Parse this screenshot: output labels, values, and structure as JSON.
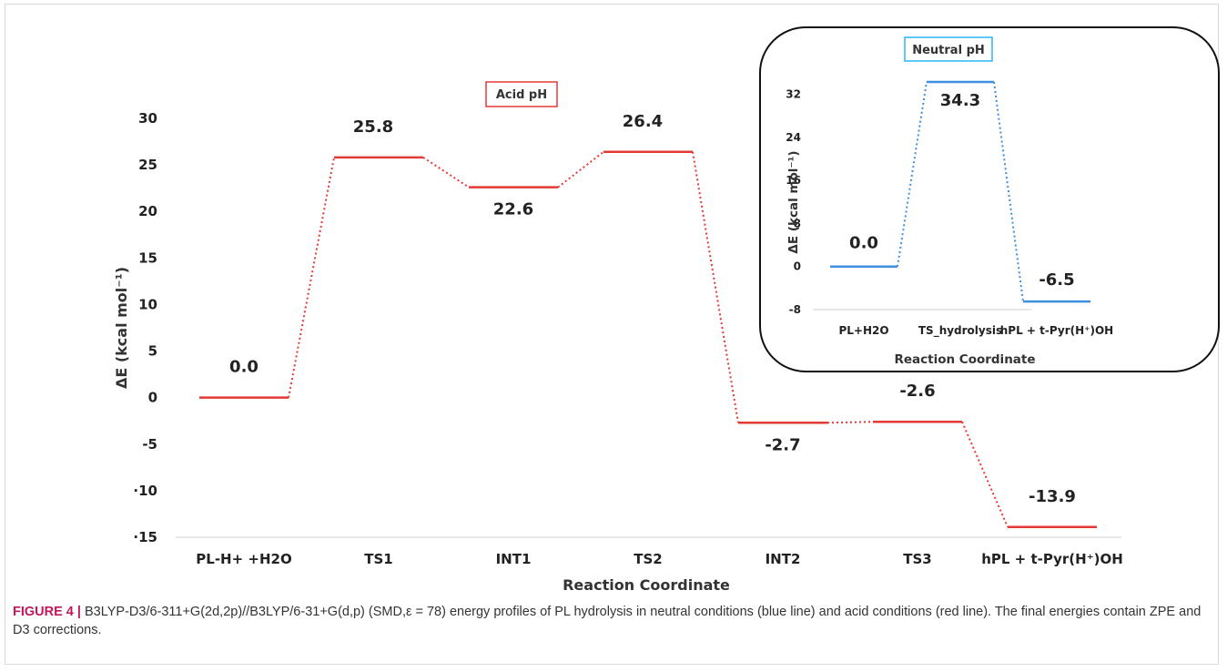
{
  "chart_data": [
    {
      "type": "line",
      "title": "Acid pH",
      "xlabel": "Reaction Coordinate",
      "ylabel": "ΔE (kcal mol⁻¹)",
      "ylim": [
        -15,
        30
      ],
      "yticks": [
        30,
        25,
        20,
        15,
        10,
        5,
        0,
        -5,
        -10,
        -15
      ],
      "ytick_labels": [
        "30",
        "25",
        "20",
        "15",
        "10",
        "5",
        "0",
        "-5",
        "·10",
        "·15"
      ],
      "categories": [
        "PL-H+ +H2O",
        "TS1",
        "INT1",
        "TS2",
        "INT2",
        "TS3",
        "hPL + t-Pyr(H⁺)OH"
      ],
      "series": [
        {
          "values": [
            0.0,
            25.8,
            22.6,
            26.4,
            -2.7,
            -2.6,
            -13.9
          ],
          "color": "#e53935"
        }
      ],
      "data_labels": [
        "0.0",
        "25.8",
        "22.6",
        "26.4",
        "-2.7",
        "-2.6",
        "-13.9"
      ],
      "grid": false
    },
    {
      "type": "line",
      "title": "Neutral pH",
      "xlabel": "Reaction Coordinate",
      "ylabel": "ΔE (kcal mol⁻¹)",
      "ylim": [
        -8,
        36
      ],
      "yticks": [
        32,
        24,
        16,
        8,
        0,
        -8
      ],
      "categories": [
        "PL+H2O",
        "TS_hydrolysis",
        "hPL + t-Pyr(H⁺)OH"
      ],
      "series": [
        {
          "values": [
            0.0,
            34.3,
            -6.5
          ],
          "color": "#3d8fe0"
        }
      ],
      "data_labels": [
        "0.0",
        "34.3",
        "-6.5"
      ],
      "grid": false
    }
  ],
  "caption": {
    "label": "FIGURE 4 |",
    "text": " B3LYP-D3/6-311+G(2d,2p)//B3LYP/6-31+G(d,p) (SMD,ε = 78) energy profiles of PL hydrolysis in neutral conditions (blue line) and acid conditions (red line). The final energies contain ZPE and D3 corrections."
  },
  "colors": {
    "acid_box_border": "#e53935",
    "neutral_box_border": "#29b6f6",
    "caption_label": "#c2185b"
  }
}
